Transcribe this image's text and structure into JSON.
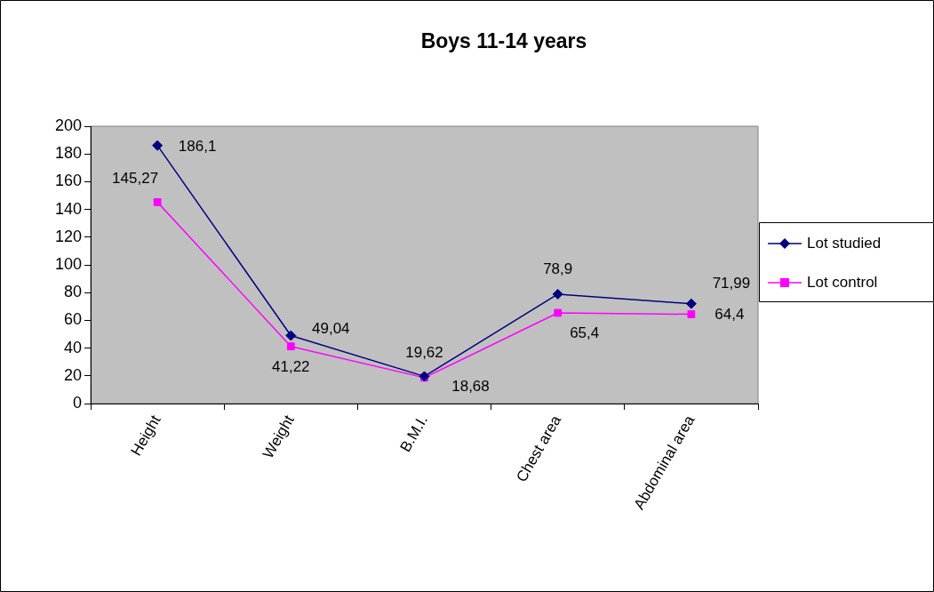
{
  "chart_data": {
    "type": "line",
    "title": "Boys 11-14 years",
    "categories": [
      "Height",
      "Weight",
      "B.M.I.",
      "Chest area",
      "Abdominal area"
    ],
    "series": [
      {
        "name": "Lot studied",
        "color": "#000080",
        "values": [
          186.1,
          49.04,
          19.62,
          78.9,
          71.99
        ],
        "value_labels": [
          "186,1",
          "49,04",
          "19,62",
          "78,9",
          "71,99"
        ],
        "marker": "diamond"
      },
      {
        "name": "Lot control",
        "color": "#ff00ff",
        "values": [
          145.27,
          41.22,
          18.68,
          65.4,
          64.4
        ],
        "value_labels": [
          "145,27",
          "41,22",
          "18,68",
          "65,4",
          "64,4"
        ],
        "marker": "square"
      }
    ],
    "ylim": [
      0,
      200
    ],
    "yticks": [
      0,
      20,
      40,
      60,
      80,
      100,
      120,
      140,
      160,
      180,
      200
    ],
    "legend": "right",
    "line_style": "solid"
  }
}
